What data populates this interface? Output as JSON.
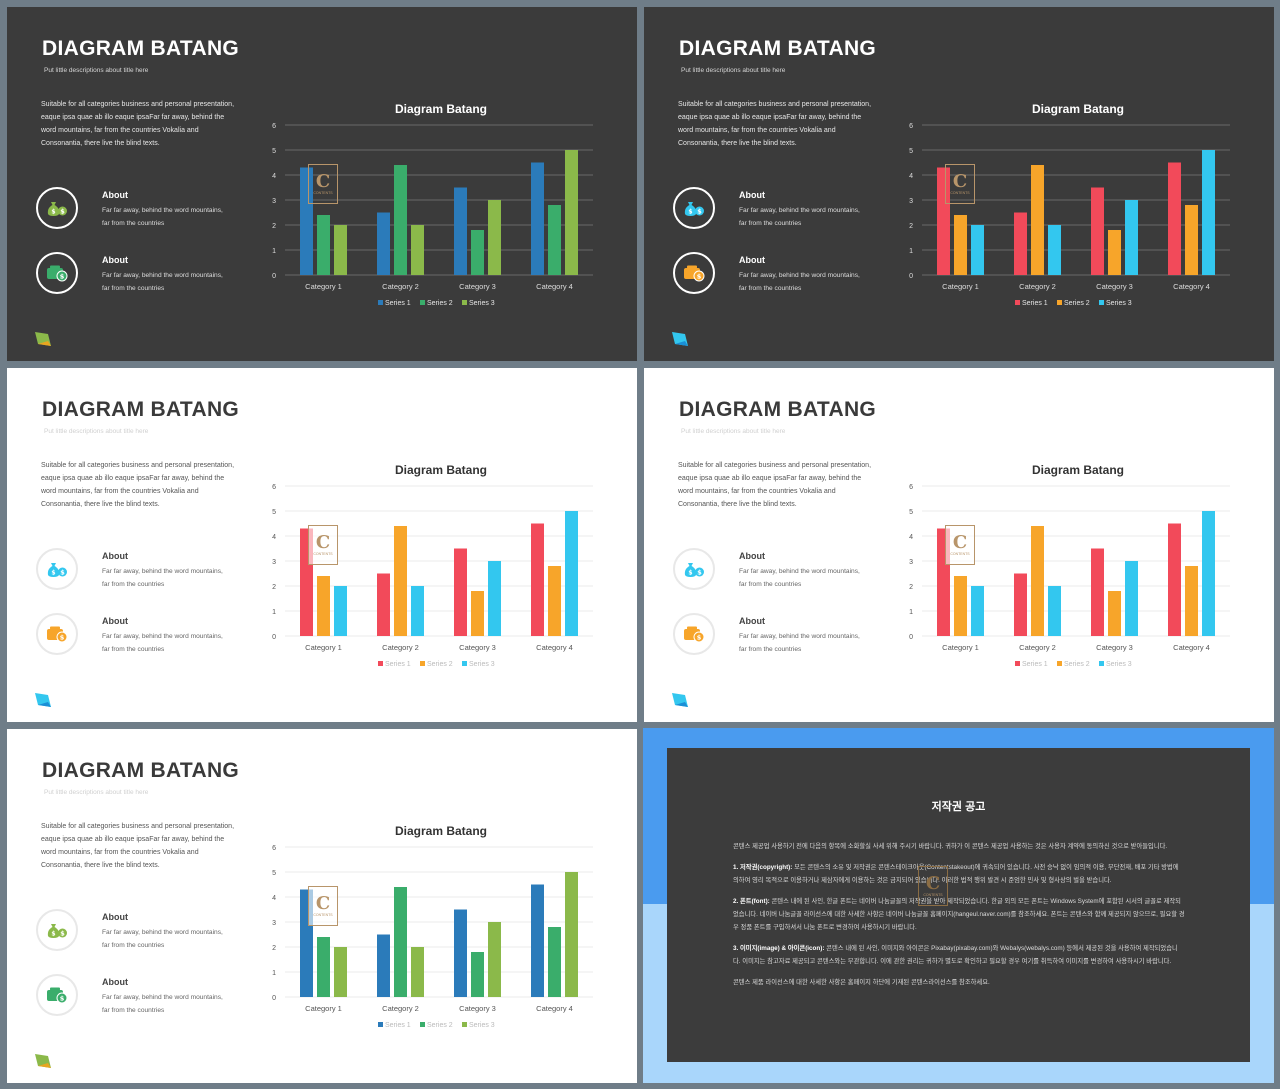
{
  "slides": [
    {
      "theme": "dark",
      "palette": [
        "#2b7bba",
        "#3aad6b",
        "#8bb94a"
      ],
      "title": "DIAGRAM BATANG",
      "subtitle": "Put little descriptions about title here",
      "description": "Suitable for all categories business and personal presentation, eaque ipsa quae ab illo eaque ipsaFar far away, behind the word mountains, far from the countries Vokalia and Consonantia, there live the blind texts.",
      "about_items": [
        {
          "title": "About",
          "text": "Far far away, behind the word mountains, far from the countries",
          "icon": "money-bag-icon"
        },
        {
          "title": "About",
          "text": "Far far away, behind the word mountains, far from the countries",
          "icon": "wallet-icon"
        }
      ],
      "logo_color": "#8bb94a",
      "logo_color2": "#e8a520"
    },
    {
      "theme": "dark",
      "palette": [
        "#f24a5a",
        "#f7a52a",
        "#33c7ef"
      ],
      "title": "DIAGRAM BATANG",
      "subtitle": "Put little descriptions about title here",
      "description": "Suitable for all categories business and personal presentation, eaque ipsa quae ab illo eaque ipsaFar far away, behind the word mountains, far from the countries Vokalia and Consonantia, there live the blind texts.",
      "about_items": [
        {
          "title": "About",
          "text": "Far far away, behind the word mountains, far from the countries",
          "icon": "money-bag-icon"
        },
        {
          "title": "About",
          "text": "Far far away, behind the word mountains, far from the countries",
          "icon": "wallet-icon"
        }
      ],
      "logo_color": "#33c7ef",
      "logo_color2": "#1a8fd6"
    },
    {
      "theme": "light",
      "palette": [
        "#f24a5a",
        "#f7a52a",
        "#33c7ef"
      ],
      "title": "DIAGRAM BATANG",
      "subtitle": "Put little descriptions about title here",
      "description": "Suitable for all categories business and personal presentation, eaque ipsa quae ab illo eaque ipsaFar far away, behind the word mountains, far from the countries Vokalia and Consonantia, there live the blind texts.",
      "about_items": [
        {
          "title": "About",
          "text": "Far far away, behind the word mountains, far from the countries",
          "icon": "money-bag-icon"
        },
        {
          "title": "About",
          "text": "Far far away, behind the word mountains, far from the countries",
          "icon": "wallet-icon"
        }
      ],
      "logo_color": "#33c7ef",
      "logo_color2": "#1a8fd6"
    },
    {
      "theme": "light",
      "palette": [
        "#f24a5a",
        "#f7a52a",
        "#33c7ef"
      ],
      "title": "DIAGRAM BATANG",
      "subtitle": "Put little descriptions about title here",
      "description": "Suitable for all categories business and personal presentation, eaque ipsa quae ab illo eaque ipsaFar far away, behind the word mountains, far from the countries Vokalia and Consonantia, there live the blind texts.",
      "about_items": [
        {
          "title": "About",
          "text": "Far far away, behind the word mountains, far from the countries",
          "icon": "money-bag-icon"
        },
        {
          "title": "About",
          "text": "Far far away, behind the word mountains, far from the countries",
          "icon": "wallet-icon"
        }
      ],
      "logo_color": "#33c7ef",
      "logo_color2": "#1a8fd6"
    },
    {
      "theme": "light",
      "palette": [
        "#2b7bba",
        "#3aad6b",
        "#8bb94a"
      ],
      "title": "DIAGRAM BATANG",
      "subtitle": "Put little descriptions about title here",
      "description": "Suitable for all categories business and personal presentation, eaque ipsa quae ab illo eaque ipsaFar far away, behind the word mountains, far from the countries Vokalia and Consonantia, there live the blind texts.",
      "about_items": [
        {
          "title": "About",
          "text": "Far far away, behind the word mountains, far from the countries",
          "icon": "money-bag-icon"
        },
        {
          "title": "About",
          "text": "Far far away, behind the word mountains, far from the countries",
          "icon": "wallet-icon"
        }
      ],
      "logo_color": "#8bb94a",
      "logo_color2": "#e8a520"
    }
  ],
  "watermark": {
    "letter": "C",
    "text": "CONTENTS"
  },
  "chart_data": {
    "type": "bar",
    "title": "Diagram Batang",
    "categories": [
      "Category 1",
      "Category 2",
      "Category 3",
      "Category 4"
    ],
    "series": [
      {
        "name": "Series 1",
        "values": [
          4.3,
          2.5,
          3.5,
          4.5
        ]
      },
      {
        "name": "Series 2",
        "values": [
          2.4,
          4.4,
          1.8,
          2.8
        ]
      },
      {
        "name": "Series 3",
        "values": [
          2,
          2,
          3,
          5
        ]
      }
    ],
    "ylim": [
      0,
      6
    ],
    "yticks": [
      0,
      1,
      2,
      3,
      4,
      5,
      6
    ],
    "grid": true,
    "legend": "bottom"
  },
  "copyright": {
    "title": "저작권 공고",
    "paragraphs": [
      {
        "lead": "",
        "text": "콘텐스 제공업 사용하기 전에 다음의 항목에 소화할실 사세 위해 주시기 바랍니다. 귀하가 이 콘텐스 제공업 사용하는 것은 사용자 계약에 동의하신 것으로 받아들입니다."
      },
      {
        "lead": "1. 저작권(copyright):",
        "text": " 모든 콘텐스의 소유 및 저작권은 콘텐스테이크아웃(Contentstakeout)에 귀속되어 있습니다. 사전 승낙 없이 임의적 이용, 무단전재, 배포 기타 방법에 의하여 영리 목적으로 이용하거나 제삼자에게 이용하는 것은 금지되어 있습니다. 이러한 법적 행위 발견 시 준엄한 민사 및 형사상의 벌을 받습니다."
      },
      {
        "lead": "2. 폰트(font):",
        "text": " 콘텐스 내에 된 사인, 한글 폰트는 네이버 나눔글꼴의 저작권을 받아 제작되었습니다. 한글 외의 모든 폰트는 Windows System에 포함된 시서의 글꼴로 제작되었습니다. 네이버 나눔글꼴 라이선스에 대한 사세한 사항은 네이버 나눔글꼴 홈페이지(hangeul.naver.com)를 참조하세요. 폰트는 콘텐스와 함께 제공되지 않으므로, 필요할 경우 정품 폰트를 구입하셔서 나눔 폰트로 변경하여 사용하시기 바랍니다."
      },
      {
        "lead": "3. 이미지(image) & 아이콘(icon):",
        "text": " 콘텐스 내에 된 사인, 이미지와 아이콘은 Pixabay(pixabay.com)와 Webalys(webalys.com) 등에서 제공된 것을 사용하여 제작되었습니다. 이미지는 참고자료 제공되고 콘텐스와는 무관합니다. 이에 관한 권리는 귀하가 별도로 확인하고 필요할 경우 여기를 취득하여 이미지를 변경하여 사용하시기 바랍니다."
      },
      {
        "lead": "",
        "text": "콘텐스 제품 라이선스에 대한 사세한 사항은 홈페이지 하단에 기재된 콘텐스라이선스를 참조하세요."
      }
    ]
  }
}
